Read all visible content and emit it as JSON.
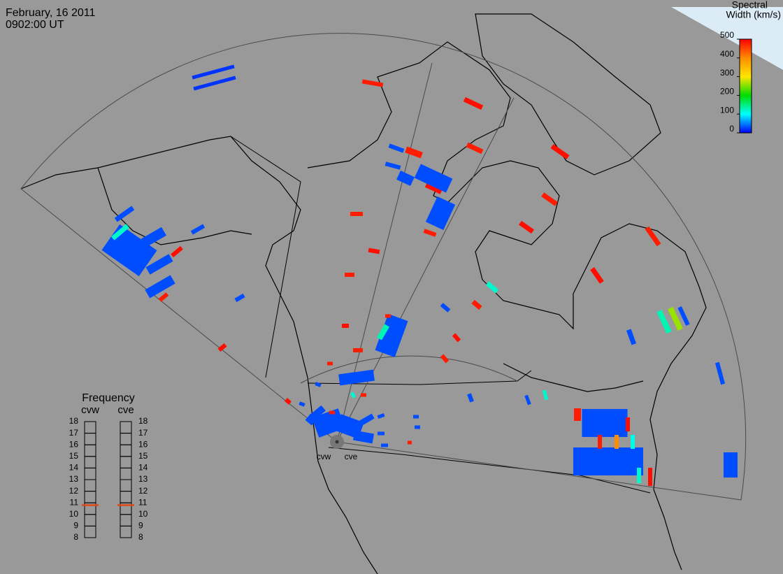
{
  "header": {
    "date": "February, 16 2011",
    "time": "0902:00 UT"
  },
  "colorbar": {
    "title_lines": [
      "Spectral",
      "Width (km/s)"
    ],
    "ylim": [
      0,
      500
    ],
    "yticks": [
      0,
      100,
      200,
      300,
      400,
      500
    ]
  },
  "frequency": {
    "title": "Frequency",
    "ylim": [
      8,
      18
    ],
    "yticks": [
      8,
      9,
      10,
      11,
      12,
      13,
      14,
      15,
      16,
      17,
      18
    ],
    "series": [
      {
        "name": "cvw",
        "value": 10.8,
        "color": "#e04818"
      },
      {
        "name": "cve",
        "value": 10.8,
        "color": "#e04818"
      }
    ]
  },
  "radars": [
    "cvw",
    "cve"
  ],
  "echoes": {
    "spectral_width": [
      20,
      20,
      30,
      30,
      30,
      30,
      30,
      120,
      30,
      30,
      480,
      490,
      480,
      490,
      480,
      490,
      480,
      490,
      480,
      480,
      490,
      480,
      490,
      480,
      490,
      480,
      490,
      480,
      490,
      480,
      490,
      480,
      490,
      480,
      30,
      30,
      30,
      30,
      30,
      30,
      30,
      30,
      120,
      30,
      130,
      260,
      30,
      30,
      30,
      30,
      120,
      30,
      30,
      30,
      480,
      490,
      480,
      400,
      110,
      490,
      120,
      30,
      30,
      30,
      30,
      30,
      30,
      30,
      30,
      30,
      30,
      30,
      120,
      30,
      30,
      480,
      480,
      480,
      480,
      130
    ]
  }
}
